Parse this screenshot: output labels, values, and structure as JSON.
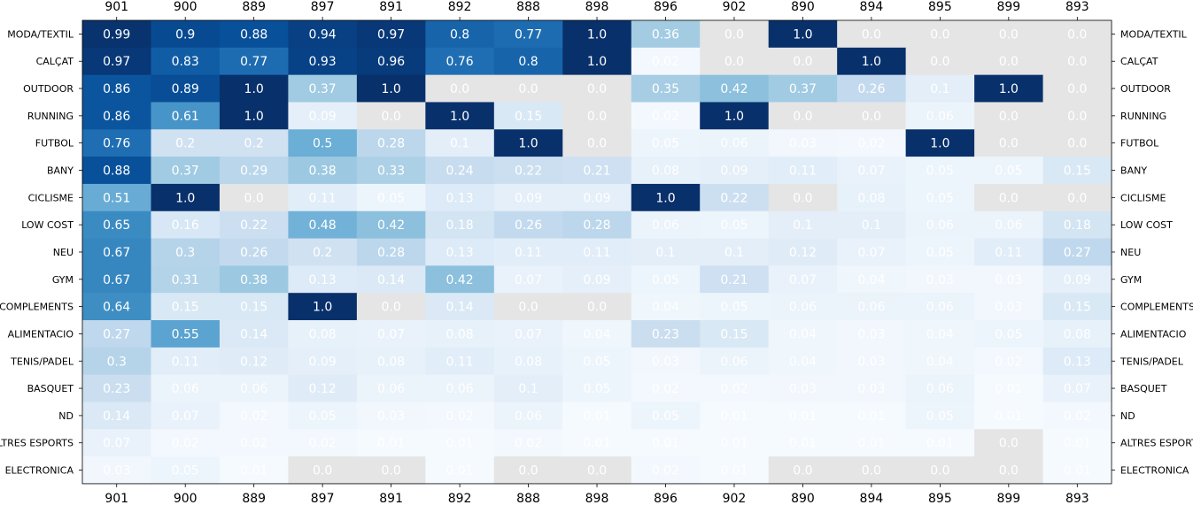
{
  "chart_data": {
    "type": "heatmap",
    "title": "",
    "xlabel": "",
    "ylabel": "",
    "x_tick_position": "top-and-bottom",
    "y_tick_position": "left-and-right",
    "colormap": "Blues",
    "color_range": [
      0,
      1
    ],
    "missing_value_color": "#e5e5e5",
    "grid": false,
    "columns": [
      "901",
      "900",
      "889",
      "897",
      "891",
      "892",
      "888",
      "898",
      "896",
      "902",
      "890",
      "894",
      "895",
      "899",
      "893"
    ],
    "rows": [
      "MODA/TEXTIL",
      "CALÇAT",
      "OUTDOOR",
      "RUNNING",
      "FUTBOL",
      "BANY",
      "CICLISME",
      "LOW COST",
      "NEU",
      "GYM",
      "COMPLEMENTS",
      "ALIMENTACIO",
      "TENIS/PADEL",
      "BASQUET",
      "ND",
      "ALTRES ESPORTS",
      "ELECTRONICA"
    ],
    "values": [
      [
        "0.99",
        "0.9",
        "0.88",
        "0.94",
        "0.97",
        "0.8",
        "0.77",
        "1.0",
        "0.36",
        "0.0",
        "1.0",
        "0.0",
        "0.0",
        "0.0",
        "0.0"
      ],
      [
        "0.97",
        "0.83",
        "0.77",
        "0.93",
        "0.96",
        "0.76",
        "0.8",
        "1.0",
        "0.02",
        "0.0",
        "0.0",
        "1.0",
        "0.0",
        "0.0",
        "0.0"
      ],
      [
        "0.86",
        "0.89",
        "1.0",
        "0.37",
        "1.0",
        "0.0",
        "0.0",
        "0.0",
        "0.35",
        "0.42",
        "0.37",
        "0.26",
        "0.1",
        "1.0",
        "0.0"
      ],
      [
        "0.86",
        "0.61",
        "1.0",
        "0.09",
        "0.0",
        "1.0",
        "0.15",
        "0.0",
        "0.02",
        "1.0",
        "0.0",
        "0.0",
        "0.06",
        "0.0",
        "0.0"
      ],
      [
        "0.76",
        "0.2",
        "0.2",
        "0.5",
        "0.28",
        "0.1",
        "1.0",
        "0.0",
        "0.05",
        "0.06",
        "0.03",
        "0.02",
        "1.0",
        "0.0",
        "0.0"
      ],
      [
        "0.88",
        "0.37",
        "0.29",
        "0.38",
        "0.33",
        "0.24",
        "0.22",
        "0.21",
        "0.08",
        "0.09",
        "0.11",
        "0.07",
        "0.05",
        "0.05",
        "0.15"
      ],
      [
        "0.51",
        "1.0",
        "0.0",
        "0.11",
        "0.05",
        "0.13",
        "0.09",
        "0.09",
        "1.0",
        "0.22",
        "0.0",
        "0.08",
        "0.05",
        "0.0",
        "0.0"
      ],
      [
        "0.65",
        "0.16",
        "0.22",
        "0.48",
        "0.42",
        "0.18",
        "0.26",
        "0.28",
        "0.06",
        "0.05",
        "0.1",
        "0.1",
        "0.06",
        "0.06",
        "0.18"
      ],
      [
        "0.67",
        "0.3",
        "0.26",
        "0.2",
        "0.28",
        "0.13",
        "0.11",
        "0.11",
        "0.1",
        "0.1",
        "0.12",
        "0.07",
        "0.05",
        "0.11",
        "0.27"
      ],
      [
        "0.67",
        "0.31",
        "0.38",
        "0.13",
        "0.14",
        "0.42",
        "0.07",
        "0.09",
        "0.05",
        "0.21",
        "0.07",
        "0.04",
        "0.03",
        "0.03",
        "0.09"
      ],
      [
        "0.64",
        "0.15",
        "0.15",
        "1.0",
        "0.0",
        "0.14",
        "0.0",
        "0.0",
        "0.04",
        "0.05",
        "0.06",
        "0.06",
        "0.06",
        "0.03",
        "0.15"
      ],
      [
        "0.27",
        "0.55",
        "0.14",
        "0.08",
        "0.07",
        "0.08",
        "0.07",
        "0.04",
        "0.23",
        "0.15",
        "0.04",
        "0.03",
        "0.04",
        "0.05",
        "0.08"
      ],
      [
        "0.3",
        "0.11",
        "0.12",
        "0.09",
        "0.08",
        "0.11",
        "0.08",
        "0.05",
        "0.03",
        "0.06",
        "0.04",
        "0.03",
        "0.04",
        "0.02",
        "0.13"
      ],
      [
        "0.23",
        "0.06",
        "0.06",
        "0.12",
        "0.06",
        "0.06",
        "0.1",
        "0.05",
        "0.02",
        "0.02",
        "0.03",
        "0.03",
        "0.06",
        "0.01",
        "0.07"
      ],
      [
        "0.14",
        "0.07",
        "0.02",
        "0.05",
        "0.03",
        "0.02",
        "0.06",
        "0.01",
        "0.05",
        "0.01",
        "0.01",
        "0.01",
        "0.05",
        "0.01",
        "0.02"
      ],
      [
        "0.07",
        "0.02",
        "0.02",
        "0.02",
        "0.01",
        "0.01",
        "0.02",
        "0.01",
        "0.01",
        "0.01",
        "0.01",
        "0.01",
        "0.01",
        "0.0",
        "0.01"
      ],
      [
        "0.03",
        "0.05",
        "0.01",
        "0.0",
        "0.0",
        "0.01",
        "0.0",
        "0.0",
        "0.02",
        "0.01",
        "0.0",
        "0.0",
        "0.0",
        "0.0",
        "0.01"
      ]
    ],
    "missing_cells": [
      [
        0,
        9
      ],
      [
        0,
        11
      ],
      [
        0,
        12
      ],
      [
        0,
        13
      ],
      [
        0,
        14
      ],
      [
        1,
        9
      ],
      [
        1,
        10
      ],
      [
        1,
        12
      ],
      [
        1,
        13
      ],
      [
        1,
        14
      ],
      [
        2,
        5
      ],
      [
        2,
        6
      ],
      [
        2,
        7
      ],
      [
        2,
        14
      ],
      [
        3,
        4
      ],
      [
        3,
        7
      ],
      [
        3,
        10
      ],
      [
        3,
        11
      ],
      [
        3,
        13
      ],
      [
        3,
        14
      ],
      [
        4,
        7
      ],
      [
        4,
        13
      ],
      [
        4,
        14
      ],
      [
        6,
        2
      ],
      [
        6,
        10
      ],
      [
        6,
        13
      ],
      [
        6,
        14
      ],
      [
        10,
        4
      ],
      [
        10,
        6
      ],
      [
        10,
        7
      ],
      [
        15,
        13
      ],
      [
        16,
        3
      ],
      [
        16,
        4
      ],
      [
        16,
        6
      ],
      [
        16,
        7
      ],
      [
        16,
        10
      ],
      [
        16,
        11
      ],
      [
        16,
        12
      ],
      [
        16,
        13
      ]
    ]
  }
}
